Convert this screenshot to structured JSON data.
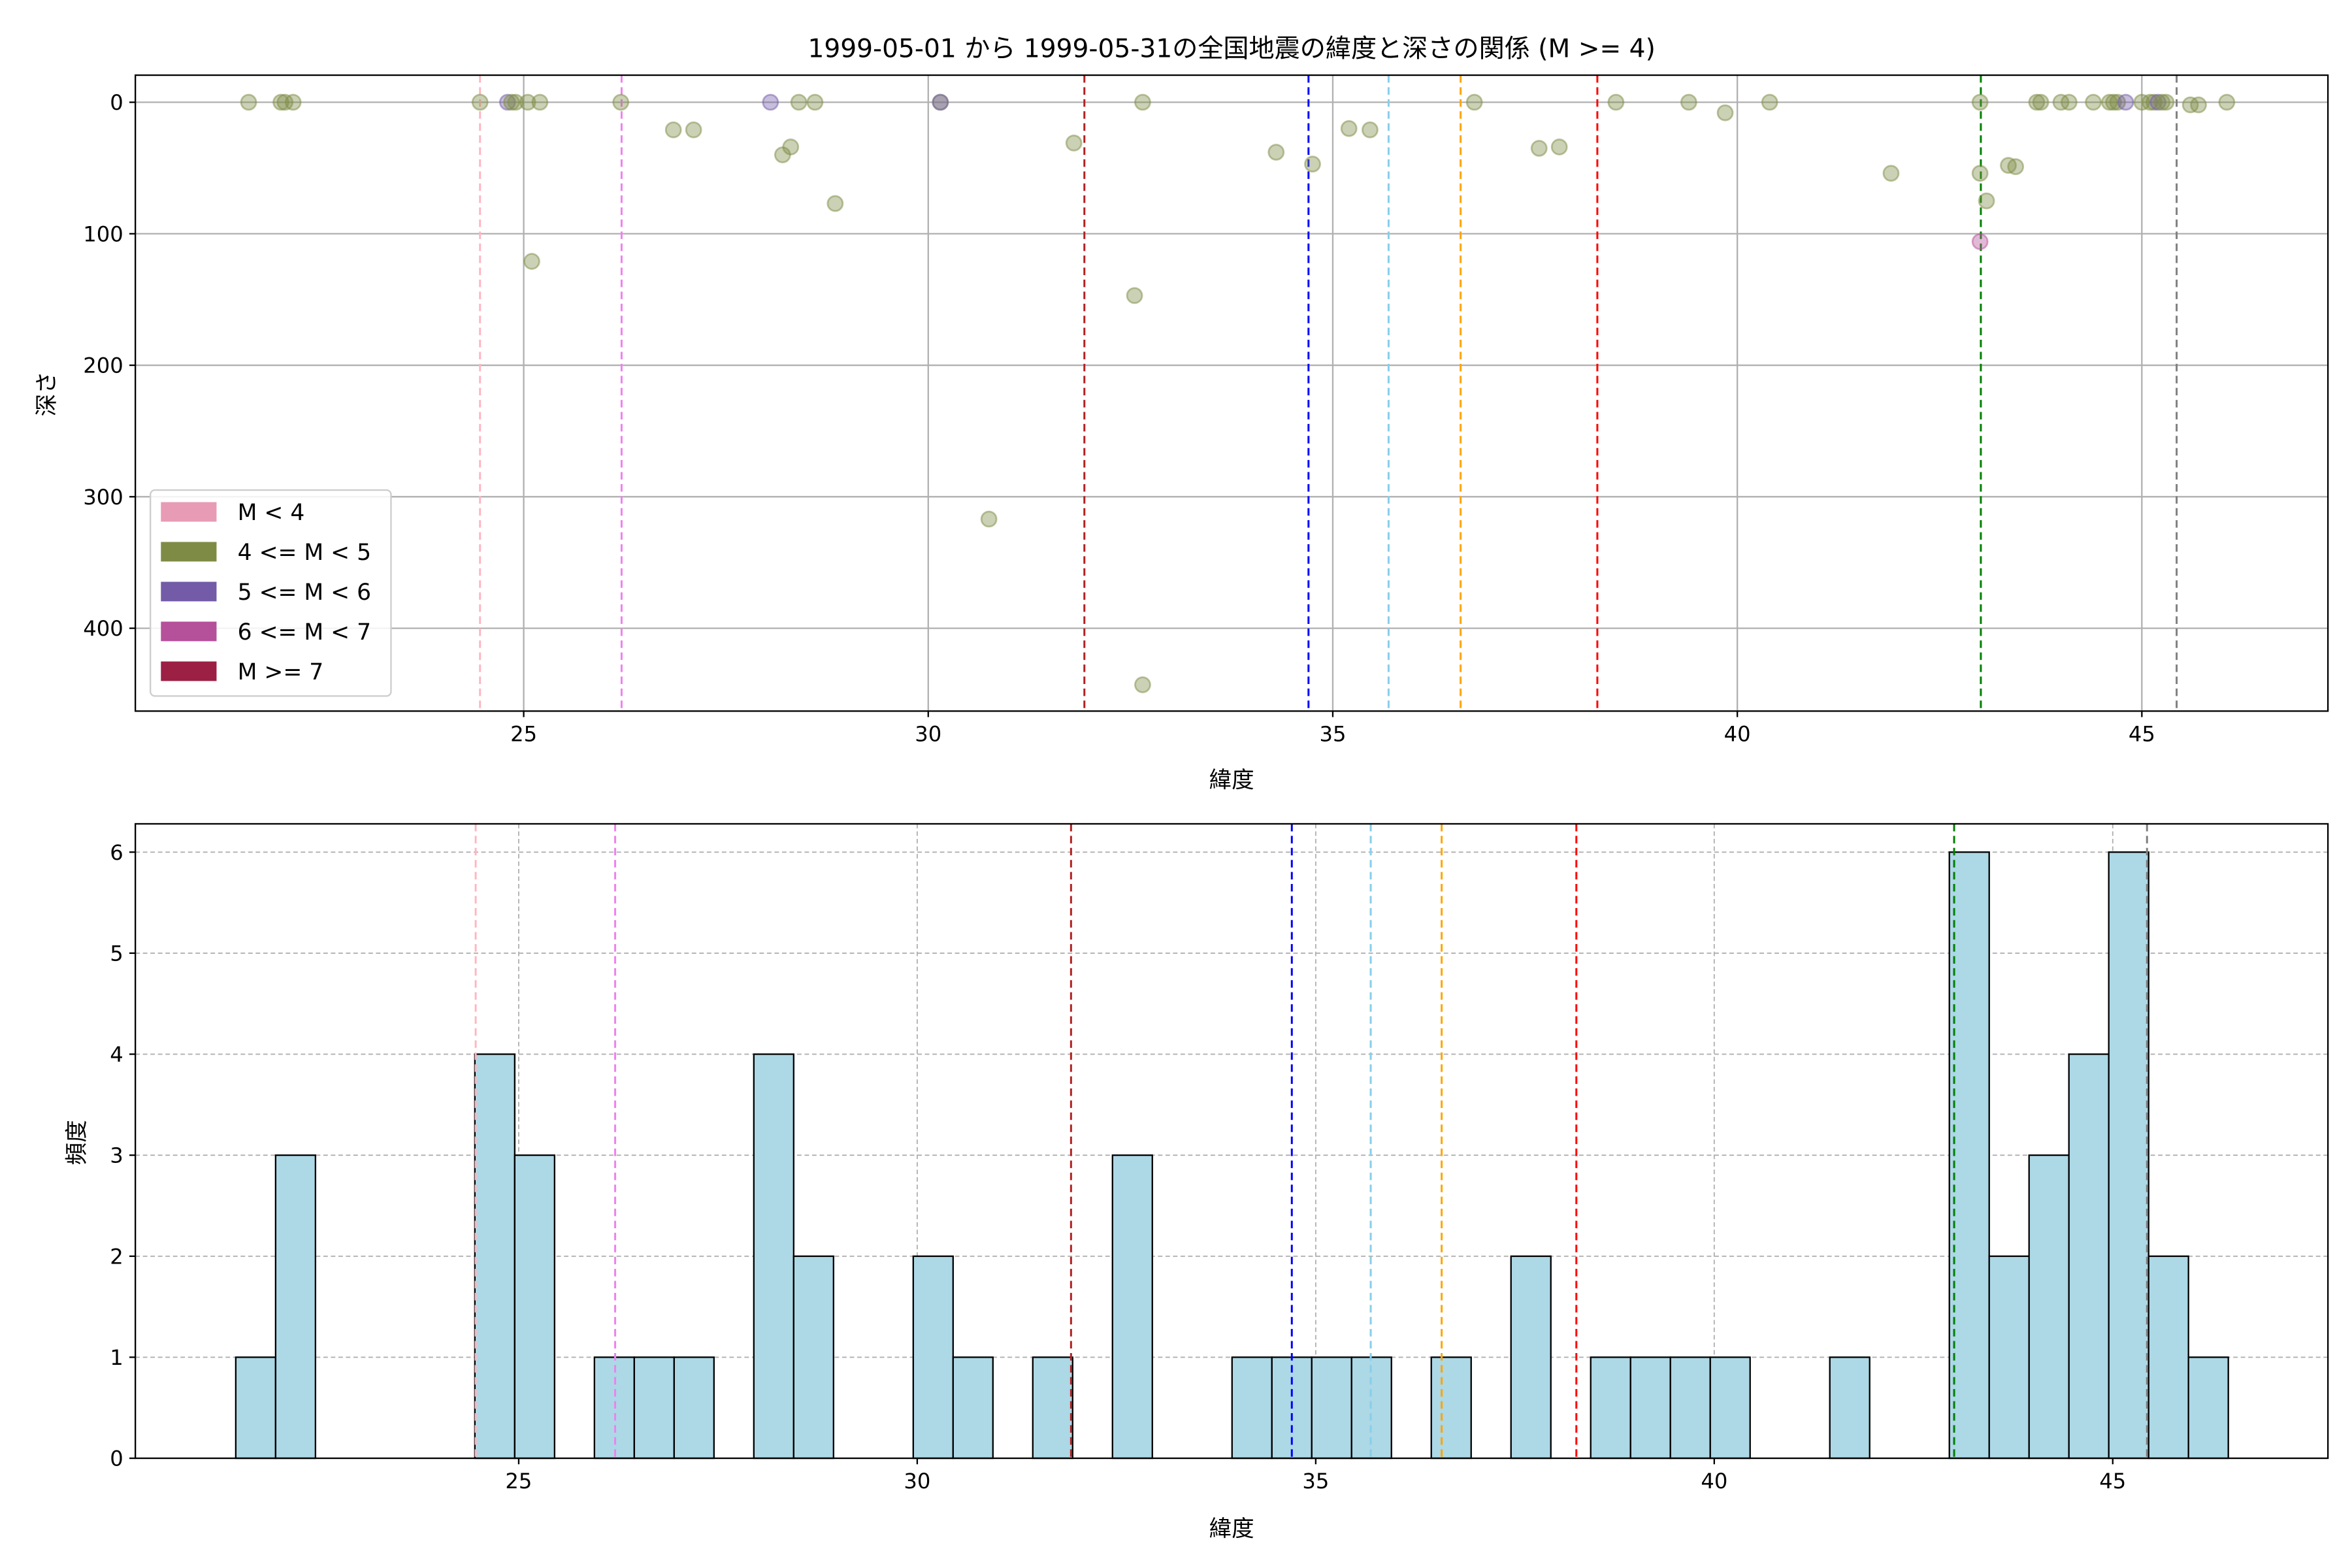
{
  "chart_data": [
    {
      "type": "scatter",
      "title": "1999-05-01 から 1999-05-31の全国地震の緯度と深さの関係 (M >= 4)",
      "xlabel": "緯度",
      "ylabel": "深さ",
      "xlim": [
        20.2,
        47.3
      ],
      "ylim": [
        463,
        -20.6
      ],
      "y_inverted": true,
      "grid": true,
      "xticks": [
        25,
        30,
        35,
        40,
        45
      ],
      "yticks": [
        0,
        100,
        200,
        300,
        400
      ],
      "legend_placement": "lower-left",
      "legend": [
        {
          "label": "M < 4",
          "color": "#e89bb4"
        },
        {
          "label": "4 <= M < 5",
          "color": "#7e8b45"
        },
        {
          "label": "5 <= M < 6",
          "color": "#735ba8"
        },
        {
          "label": "6 <= M < 7",
          "color": "#b5509b"
        },
        {
          "label": "M >= 7",
          "color": "#9c1f44"
        }
      ],
      "points": [
        {
          "lat": 21.6,
          "depth": 0,
          "cls": 1
        },
        {
          "lat": 22.0,
          "depth": 0,
          "cls": 1
        },
        {
          "lat": 22.05,
          "depth": 0,
          "cls": 1
        },
        {
          "lat": 22.15,
          "depth": 0,
          "cls": 1
        },
        {
          "lat": 24.46,
          "depth": 0,
          "cls": 1
        },
        {
          "lat": 24.8,
          "depth": 0,
          "cls": 2
        },
        {
          "lat": 24.85,
          "depth": 0,
          "cls": 1
        },
        {
          "lat": 24.9,
          "depth": 0,
          "cls": 1
        },
        {
          "lat": 25.05,
          "depth": 0,
          "cls": 1
        },
        {
          "lat": 25.2,
          "depth": 0,
          "cls": 1
        },
        {
          "lat": 25.1,
          "depth": 121,
          "cls": 1
        },
        {
          "lat": 26.2,
          "depth": 0,
          "cls": 1
        },
        {
          "lat": 26.85,
          "depth": 21,
          "cls": 1
        },
        {
          "lat": 27.1,
          "depth": 21,
          "cls": 1
        },
        {
          "lat": 28.05,
          "depth": 0,
          "cls": 2
        },
        {
          "lat": 28.2,
          "depth": 40,
          "cls": 1
        },
        {
          "lat": 28.3,
          "depth": 34,
          "cls": 1
        },
        {
          "lat": 28.4,
          "depth": 0,
          "cls": 1
        },
        {
          "lat": 28.6,
          "depth": 0,
          "cls": 1
        },
        {
          "lat": 28.85,
          "depth": 77,
          "cls": 1
        },
        {
          "lat": 30.15,
          "depth": 0,
          "cls": 1
        },
        {
          "lat": 30.15,
          "depth": 0,
          "cls": 2
        },
        {
          "lat": 30.75,
          "depth": 317,
          "cls": 1
        },
        {
          "lat": 31.8,
          "depth": 31,
          "cls": 1
        },
        {
          "lat": 32.55,
          "depth": 147,
          "cls": 1
        },
        {
          "lat": 32.65,
          "depth": 0,
          "cls": 1
        },
        {
          "lat": 32.65,
          "depth": 443,
          "cls": 1
        },
        {
          "lat": 34.3,
          "depth": 38,
          "cls": 1
        },
        {
          "lat": 34.75,
          "depth": 47,
          "cls": 1
        },
        {
          "lat": 35.2,
          "depth": 20,
          "cls": 1
        },
        {
          "lat": 35.46,
          "depth": 21,
          "cls": 1
        },
        {
          "lat": 36.75,
          "depth": 0,
          "cls": 1
        },
        {
          "lat": 37.55,
          "depth": 35,
          "cls": 1
        },
        {
          "lat": 37.8,
          "depth": 34,
          "cls": 1
        },
        {
          "lat": 38.5,
          "depth": 0,
          "cls": 1
        },
        {
          "lat": 39.4,
          "depth": 0,
          "cls": 1
        },
        {
          "lat": 39.85,
          "depth": 8,
          "cls": 1
        },
        {
          "lat": 40.4,
          "depth": 0,
          "cls": 1
        },
        {
          "lat": 41.9,
          "depth": 54,
          "cls": 1
        },
        {
          "lat": 43.0,
          "depth": 0,
          "cls": 1
        },
        {
          "lat": 43.0,
          "depth": 54,
          "cls": 1
        },
        {
          "lat": 43.0,
          "depth": 106,
          "cls": 3
        },
        {
          "lat": 43.08,
          "depth": 75,
          "cls": 1
        },
        {
          "lat": 43.35,
          "depth": 48,
          "cls": 1
        },
        {
          "lat": 43.44,
          "depth": 49,
          "cls": 1
        },
        {
          "lat": 43.7,
          "depth": 0,
          "cls": 1
        },
        {
          "lat": 43.75,
          "depth": 0,
          "cls": 1
        },
        {
          "lat": 44.0,
          "depth": 0,
          "cls": 1
        },
        {
          "lat": 44.1,
          "depth": 0,
          "cls": 1
        },
        {
          "lat": 44.4,
          "depth": 0,
          "cls": 1
        },
        {
          "lat": 44.6,
          "depth": 0,
          "cls": 1
        },
        {
          "lat": 44.65,
          "depth": 0,
          "cls": 1
        },
        {
          "lat": 44.7,
          "depth": 0,
          "cls": 1
        },
        {
          "lat": 44.8,
          "depth": 0,
          "cls": 2
        },
        {
          "lat": 45.0,
          "depth": 0,
          "cls": 1
        },
        {
          "lat": 45.1,
          "depth": 0,
          "cls": 1
        },
        {
          "lat": 45.15,
          "depth": 0,
          "cls": 1
        },
        {
          "lat": 45.2,
          "depth": 0,
          "cls": 2
        },
        {
          "lat": 45.25,
          "depth": 0,
          "cls": 1
        },
        {
          "lat": 45.3,
          "depth": 0,
          "cls": 1
        },
        {
          "lat": 45.6,
          "depth": 2,
          "cls": 1
        },
        {
          "lat": 45.7,
          "depth": 2,
          "cls": 1
        },
        {
          "lat": 46.05,
          "depth": 0,
          "cls": 1
        }
      ]
    },
    {
      "type": "bar",
      "subtype": "histogram",
      "xlabel": "緯度",
      "ylabel": "頻度",
      "xlim": [
        20.19,
        47.7
      ],
      "ylim": [
        0,
        6.28
      ],
      "grid": true,
      "xticks": [
        25,
        30,
        35,
        40,
        45
      ],
      "yticks": [
        0,
        1,
        2,
        3,
        4,
        5,
        6
      ],
      "bar_color": "#add8e6",
      "bin_range": [
        21.45,
        46.45
      ],
      "counts": [
        1,
        3,
        0,
        0,
        0,
        0,
        4,
        3,
        0,
        1,
        1,
        1,
        0,
        4,
        2,
        0,
        0,
        2,
        1,
        0,
        1,
        0,
        3,
        0,
        0,
        1,
        1,
        1,
        1,
        0,
        1,
        0,
        2,
        0,
        1,
        1,
        1,
        1,
        0,
        0,
        1,
        0,
        0,
        6,
        2,
        3,
        4,
        6,
        2,
        1
      ]
    }
  ],
  "reference_lines": [
    {
      "lat": 24.46,
      "color": "#ffb6c1"
    },
    {
      "lat": 26.21,
      "color": "#ee82ee"
    },
    {
      "lat": 31.93,
      "color": "#b22222"
    },
    {
      "lat": 34.7,
      "color": "#0000ff"
    },
    {
      "lat": 35.69,
      "color": "#87ceeb"
    },
    {
      "lat": 36.58,
      "color": "#ffa500"
    },
    {
      "lat": 38.27,
      "color": "#ff0000"
    },
    {
      "lat": 43.01,
      "color": "#008000"
    },
    {
      "lat": 45.43,
      "color": "#808080"
    }
  ]
}
